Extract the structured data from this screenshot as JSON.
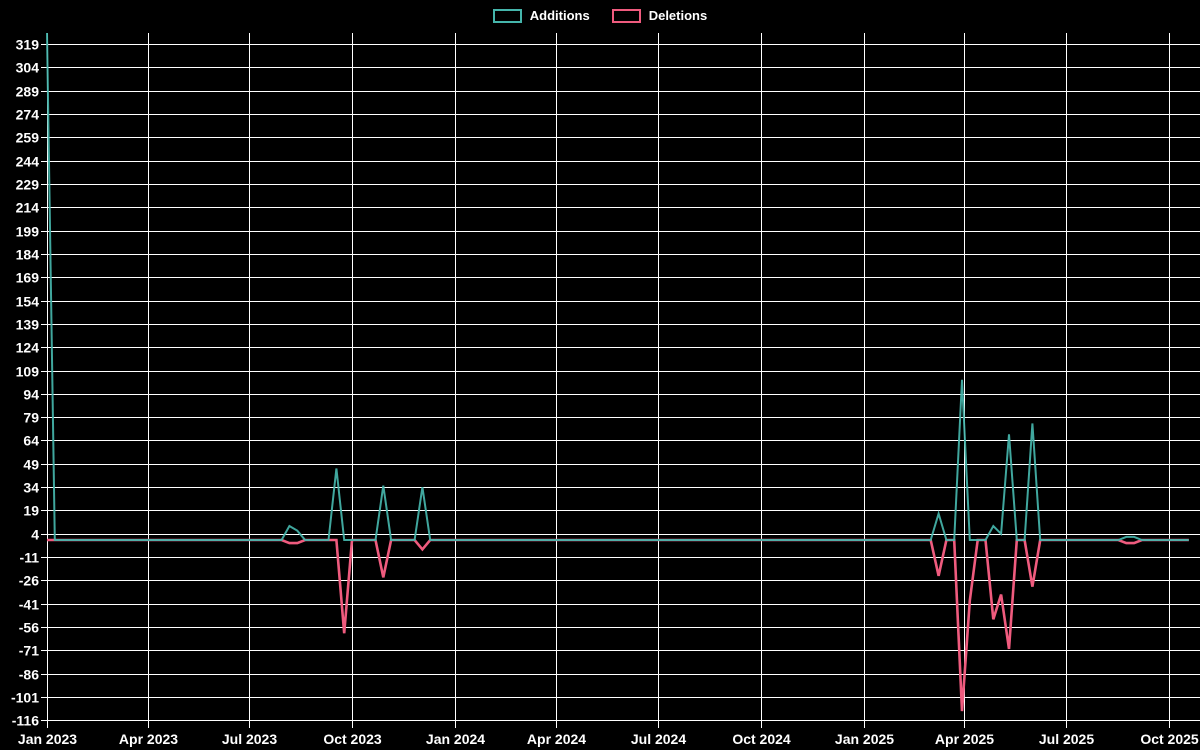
{
  "legend": [
    {
      "label": "Additions",
      "color": "#45b5ab"
    },
    {
      "label": "Deletions",
      "color": "#ef5b7e"
    }
  ],
  "colors": {
    "background": "#000000",
    "grid": "#ffffff",
    "text": "#ffffff",
    "additions_line": "#45b5ab",
    "deletions_line": "#ef5b7e"
  },
  "chart_data": {
    "type": "line",
    "title": "",
    "xlabel": "",
    "ylabel": "",
    "legend_position": "top-center",
    "grid": true,
    "x_axis": {
      "domain": [
        "2023-01-01",
        "2025-10-29"
      ],
      "ticks": [
        {
          "label": "Jan 2023",
          "date": "2023-01-01"
        },
        {
          "label": "Apr 2023",
          "date": "2023-04-01"
        },
        {
          "label": "Jul 2023",
          "date": "2023-07-01"
        },
        {
          "label": "Oct 2023",
          "date": "2023-10-01"
        },
        {
          "label": "Jan 2024",
          "date": "2024-01-01"
        },
        {
          "label": "Apr 2024",
          "date": "2024-04-01"
        },
        {
          "label": "Jul 2024",
          "date": "2024-07-01"
        },
        {
          "label": "Oct 2024",
          "date": "2024-10-01"
        },
        {
          "label": "Jan 2025",
          "date": "2025-01-01"
        },
        {
          "label": "Apr 2025",
          "date": "2025-04-01"
        },
        {
          "label": "Jul 2025",
          "date": "2025-07-01"
        },
        {
          "label": "Oct 2025",
          "date": "2025-10-01"
        }
      ]
    },
    "y_axis": {
      "ylim": [
        -117,
        326
      ],
      "tick_values": [
        319,
        304,
        289,
        274,
        259,
        244,
        229,
        214,
        199,
        184,
        169,
        154,
        139,
        124,
        109,
        94,
        79,
        64,
        49,
        34,
        19,
        4,
        -11,
        -26,
        -41,
        -56,
        -71,
        -86,
        -101,
        -116
      ]
    },
    "series": [
      {
        "name": "Additions",
        "color": "#45b5ab",
        "points": [
          [
            "2023-01-01",
            326
          ],
          [
            "2023-01-08",
            0
          ],
          [
            "2023-07-30",
            0
          ],
          [
            "2023-08-06",
            9
          ],
          [
            "2023-08-13",
            6
          ],
          [
            "2023-08-20",
            0
          ],
          [
            "2023-09-10",
            0
          ],
          [
            "2023-09-17",
            46
          ],
          [
            "2023-09-24",
            0
          ],
          [
            "2023-10-22",
            0
          ],
          [
            "2023-10-29",
            35
          ],
          [
            "2023-11-05",
            0
          ],
          [
            "2023-11-26",
            0
          ],
          [
            "2023-12-03",
            34
          ],
          [
            "2023-12-10",
            0
          ],
          [
            "2025-03-02",
            0
          ],
          [
            "2025-03-09",
            17
          ],
          [
            "2025-03-16",
            0
          ],
          [
            "2025-03-23",
            0
          ],
          [
            "2025-03-30",
            103
          ],
          [
            "2025-04-06",
            0
          ],
          [
            "2025-04-20",
            0
          ],
          [
            "2025-04-27",
            9
          ],
          [
            "2025-05-04",
            4
          ],
          [
            "2025-05-11",
            68
          ],
          [
            "2025-05-18",
            0
          ],
          [
            "2025-05-25",
            0
          ],
          [
            "2025-06-01",
            75
          ],
          [
            "2025-06-08",
            0
          ],
          [
            "2025-08-17",
            0
          ],
          [
            "2025-08-24",
            2
          ],
          [
            "2025-08-31",
            2
          ],
          [
            "2025-09-07",
            0
          ],
          [
            "2025-10-19",
            0
          ]
        ]
      },
      {
        "name": "Deletions",
        "color": "#ef5b7e",
        "points": [
          [
            "2023-01-01",
            0
          ],
          [
            "2023-07-30",
            0
          ],
          [
            "2023-08-06",
            -2
          ],
          [
            "2023-08-13",
            -2
          ],
          [
            "2023-08-20",
            0
          ],
          [
            "2023-09-17",
            0
          ],
          [
            "2023-09-24",
            -60
          ],
          [
            "2023-10-01",
            0
          ],
          [
            "2023-10-22",
            0
          ],
          [
            "2023-10-29",
            -24
          ],
          [
            "2023-11-05",
            0
          ],
          [
            "2023-11-26",
            0
          ],
          [
            "2023-12-03",
            -6
          ],
          [
            "2023-12-10",
            0
          ],
          [
            "2025-03-02",
            0
          ],
          [
            "2025-03-09",
            -23
          ],
          [
            "2025-03-16",
            0
          ],
          [
            "2025-03-23",
            0
          ],
          [
            "2025-03-30",
            -110
          ],
          [
            "2025-04-06",
            -39
          ],
          [
            "2025-04-13",
            0
          ],
          [
            "2025-04-20",
            0
          ],
          [
            "2025-04-27",
            -51
          ],
          [
            "2025-05-04",
            -35
          ],
          [
            "2025-05-11",
            -70
          ],
          [
            "2025-05-18",
            0
          ],
          [
            "2025-05-25",
            0
          ],
          [
            "2025-06-01",
            -30
          ],
          [
            "2025-06-08",
            0
          ],
          [
            "2025-08-17",
            0
          ],
          [
            "2025-08-24",
            -2
          ],
          [
            "2025-08-31",
            -2
          ],
          [
            "2025-09-07",
            0
          ],
          [
            "2025-10-19",
            0
          ]
        ]
      }
    ]
  }
}
